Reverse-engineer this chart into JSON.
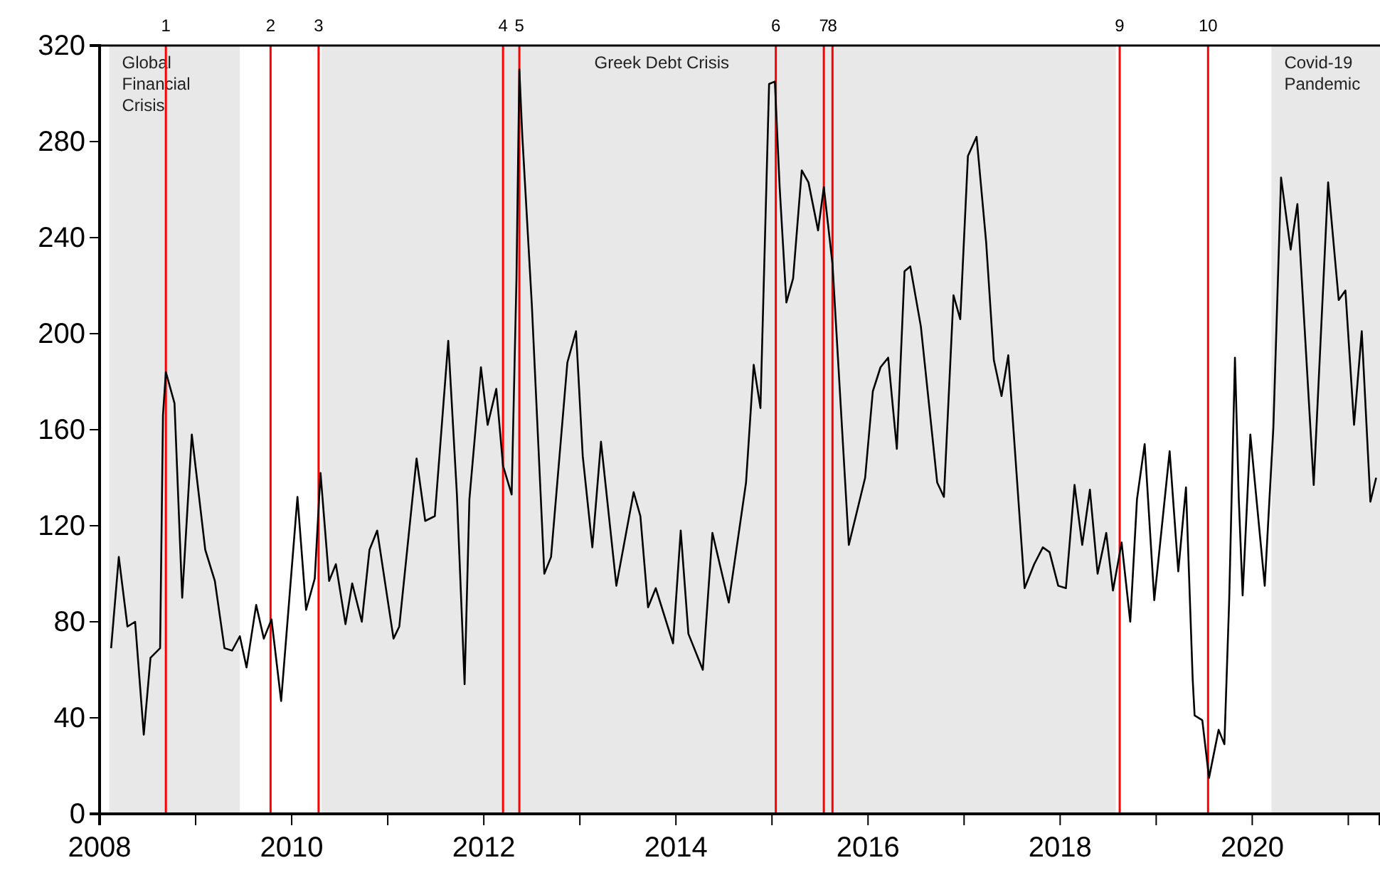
{
  "chart_data": {
    "type": "line",
    "x": [
      2008.12,
      2008.2,
      2008.29,
      2008.37,
      2008.46,
      2008.53,
      2008.63,
      2008.66,
      2008.69,
      2008.78,
      2008.86,
      2008.96,
      2009.1,
      2009.2,
      2009.3,
      2009.38,
      2009.46,
      2009.53,
      2009.63,
      2009.71,
      2009.79,
      2009.89,
      2010.06,
      2010.15,
      2010.24,
      2010.3,
      2010.39,
      2010.46,
      2010.56,
      2010.63,
      2010.73,
      2010.81,
      2010.89,
      2011.06,
      2011.12,
      2011.3,
      2011.39,
      2011.49,
      2011.63,
      2011.72,
      2011.8,
      2011.85,
      2011.97,
      2012.04,
      2012.13,
      2012.2,
      2012.29,
      2012.34,
      2012.37,
      2012.4,
      2012.5,
      2012.63,
      2012.7,
      2012.87,
      2012.96,
      2013.03,
      2013.13,
      2013.22,
      2013.38,
      2013.56,
      2013.63,
      2013.71,
      2013.79,
      2013.97,
      2014.05,
      2014.13,
      2014.28,
      2014.38,
      2014.55,
      2014.73,
      2014.81,
      2014.88,
      2014.97,
      2015.03,
      2015.08,
      2015.15,
      2015.22,
      2015.31,
      2015.38,
      2015.48,
      2015.54,
      2015.63,
      2015.8,
      2015.97,
      2016.05,
      2016.13,
      2016.21,
      2016.3,
      2016.38,
      2016.44,
      2016.55,
      2016.72,
      2016.79,
      2016.89,
      2016.96,
      2017.04,
      2017.13,
      2017.23,
      2017.31,
      2017.39,
      2017.46,
      2017.63,
      2017.73,
      2017.82,
      2017.89,
      2017.98,
      2018.06,
      2018.15,
      2018.23,
      2018.31,
      2018.39,
      2018.48,
      2018.55,
      2018.64,
      2018.73,
      2018.8,
      2018.88,
      2018.98,
      2019.14,
      2019.23,
      2019.31,
      2019.38,
      2019.4,
      2019.48,
      2019.55,
      2019.65,
      2019.71,
      2019.76,
      2019.82,
      2019.86,
      2019.9,
      2019.98,
      2020.13,
      2020.22,
      2020.3,
      2020.4,
      2020.47,
      2020.64,
      2020.79,
      2020.9,
      2020.97,
      2021.06,
      2021.14,
      2021.23,
      2021.29
    ],
    "series": [
      {
        "color": "#000000",
        "values": [
          69,
          107,
          78,
          80,
          33,
          65,
          69,
          166,
          184,
          171,
          90,
          158,
          110,
          97,
          69,
          68,
          74,
          61,
          87,
          73,
          81,
          47,
          132,
          85,
          98,
          142,
          97,
          104,
          79,
          96,
          80,
          110,
          118,
          73,
          78,
          148,
          122,
          124,
          197,
          133,
          54,
          131,
          186,
          162,
          177,
          145,
          133,
          223,
          310,
          283,
          212,
          100,
          107,
          188,
          201,
          149,
          111,
          155,
          95,
          134,
          124,
          86,
          94,
          71,
          118,
          75,
          60,
          117,
          88,
          138,
          187,
          169,
          304,
          305,
          261,
          213,
          223,
          268,
          263,
          243,
          261,
          229,
          112,
          140,
          176,
          186,
          190,
          152,
          226,
          228,
          203,
          138,
          132,
          216,
          206,
          274,
          282,
          238,
          189,
          174,
          191,
          94,
          104,
          111,
          109,
          95,
          94,
          137,
          112,
          135,
          100,
          117,
          93,
          113,
          80,
          131,
          154,
          89,
          151,
          101,
          136,
          56,
          41,
          39,
          15,
          35,
          29,
          89,
          190,
          131,
          91,
          158,
          95,
          161,
          265,
          235,
          254,
          137,
          263,
          214,
          218,
          162,
          201,
          130,
          140
        ]
      }
    ],
    "xlim": [
      2008,
      2021.33
    ],
    "xticks": [
      2008,
      {
        "value": 2009,
        "label": null
      },
      2010,
      {
        "value": 2011,
        "label": null
      },
      2012,
      {
        "value": 2013,
        "label": null
      },
      2014,
      {
        "value": 2015,
        "label": null
      },
      2016,
      {
        "value": 2017,
        "label": null
      },
      2018,
      {
        "value": 2019,
        "label": null
      },
      2020,
      {
        "value": 2021,
        "label": null
      }
    ],
    "ylim": [
      0,
      320
    ],
    "yticks": [
      0,
      40,
      80,
      120,
      160,
      200,
      240,
      280,
      320
    ],
    "grid": false,
    "annotations": [
      "1",
      "2",
      "3",
      "4",
      "5",
      "6",
      "7",
      "8",
      "9",
      "10"
    ],
    "marker": "none",
    "line_style": "solid",
    "bands": [
      {
        "axis": "x",
        "from": 2008.1,
        "to": 2009.46,
        "label": "Global Financial Crisis",
        "color": "#e8e8e8"
      },
      {
        "axis": "x",
        "from": 2010.31,
        "to": 2018.58,
        "label": "Greek Debt Crisis",
        "color": "#e8e8e8"
      },
      {
        "axis": "x",
        "from": 2020.2,
        "to": 2021.33,
        "label": "Covid-19 Pandemic",
        "color": "#e8e8e8"
      }
    ],
    "ref_lines": [
      {
        "axis": "x",
        "value": 2008.69,
        "color": "#ff0000"
      },
      {
        "axis": "x",
        "value": 2009.78,
        "color": "#ff0000"
      },
      {
        "axis": "x",
        "value": 2010.28,
        "color": "#ff0000"
      },
      {
        "axis": "x",
        "value": 2012.2,
        "color": "#ff0000"
      },
      {
        "axis": "x",
        "value": 2012.37,
        "color": "#ff0000"
      },
      {
        "axis": "x",
        "value": 2015.04,
        "color": "#ff0000"
      },
      {
        "axis": "x",
        "value": 2015.54,
        "color": "#ff0000"
      },
      {
        "axis": "x",
        "value": 2015.63,
        "color": "#ff0000"
      },
      {
        "axis": "x",
        "value": 2018.62,
        "color": "#ff0000"
      },
      {
        "axis": "x",
        "value": 2019.54,
        "color": "#ff0000"
      }
    ]
  }
}
